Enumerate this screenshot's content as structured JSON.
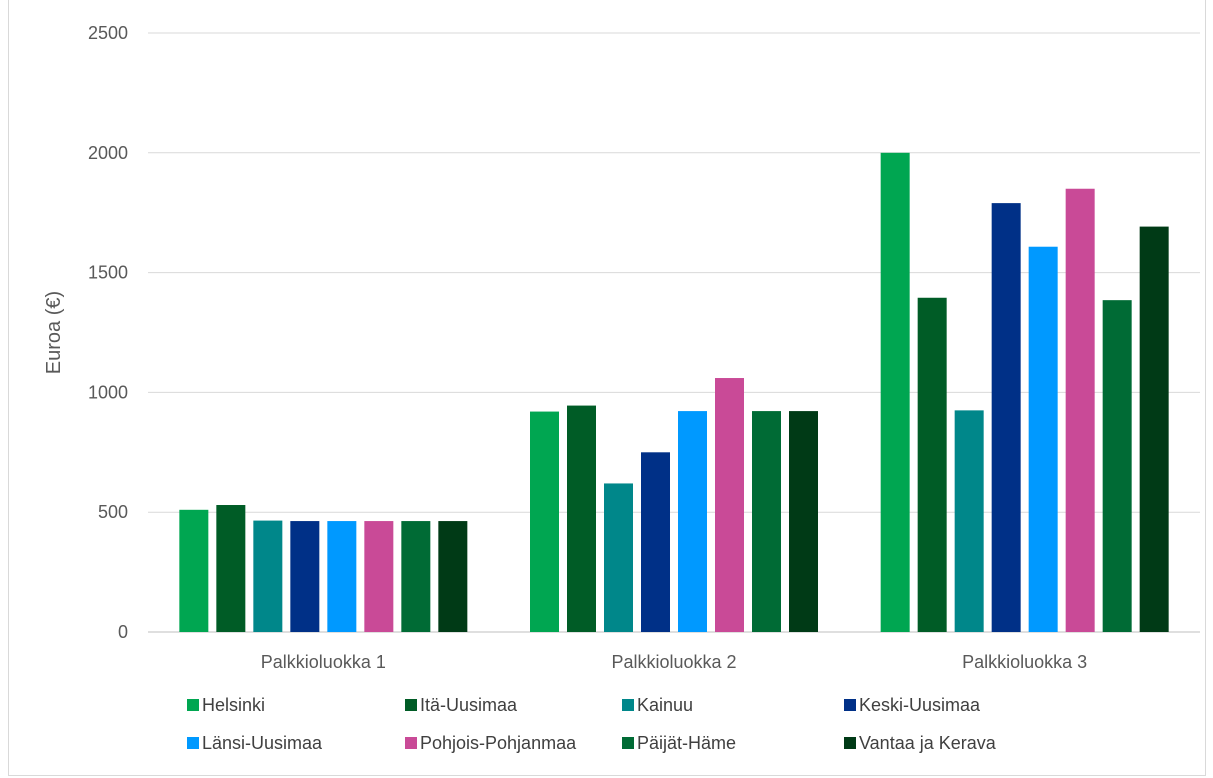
{
  "chart_data": {
    "type": "bar",
    "title": "",
    "xlabel": "",
    "ylabel": "Euroa (€)",
    "ylim": [
      0,
      2500
    ],
    "yticks": [
      0,
      500,
      1000,
      1500,
      2000,
      2500
    ],
    "grid": true,
    "legend_position": "bottom",
    "categories": [
      "Palkkioluokka 1",
      "Palkkioluokka 2",
      "Palkkioluokka 3"
    ],
    "series": [
      {
        "name": "Helsinki",
        "color": "#00a651",
        "values": [
          510,
          920,
          2000
        ]
      },
      {
        "name": "Itä-Uusimaa",
        "color": "#005c26",
        "values": [
          530,
          945,
          1395
        ]
      },
      {
        "name": "Kainuu",
        "color": "#00878a",
        "values": [
          465,
          620,
          925
        ]
      },
      {
        "name": "Keski-Uusimaa",
        "color": "#003087",
        "values": [
          463,
          750,
          1790
        ]
      },
      {
        "name": "Länsi-Uusimaa",
        "color": "#0099ff",
        "values": [
          463,
          922,
          1608
        ]
      },
      {
        "name": "Pohjois-Pohjanmaa",
        "color": "#c94a97",
        "values": [
          463,
          1060,
          1850
        ]
      },
      {
        "name": "Päijät-Häme",
        "color": "#006b35",
        "values": [
          463,
          922,
          1385
        ]
      },
      {
        "name": "Vantaa ja Kerava",
        "color": "#003a16",
        "values": [
          463,
          922,
          1692
        ]
      }
    ]
  }
}
